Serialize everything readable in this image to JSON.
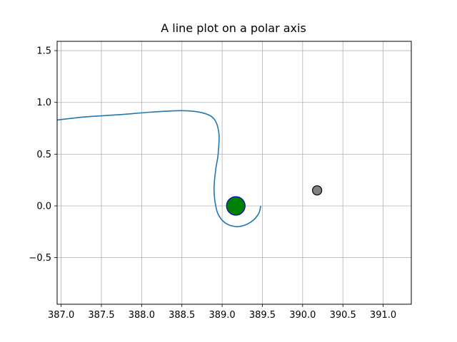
{
  "chart_data": {
    "type": "line",
    "title": "A line plot on a polar axis",
    "xlabel": "",
    "ylabel": "",
    "xlim": [
      386.95,
      391.35
    ],
    "ylim": [
      -0.95,
      1.59
    ],
    "grid": true,
    "x_ticks": [
      "387.0",
      "387.5",
      "388.0",
      "388.5",
      "389.0",
      "389.5",
      "390.0",
      "390.5",
      "391.0"
    ],
    "x_tick_values": [
      387.0,
      387.5,
      388.0,
      388.5,
      389.0,
      389.5,
      390.0,
      390.5,
      391.0
    ],
    "y_ticks": [
      "−0.5",
      "0.0",
      "0.5",
      "1.0",
      "1.5"
    ],
    "y_tick_values": [
      -0.5,
      0.0,
      0.5,
      1.0,
      1.5
    ],
    "series": [
      {
        "color": "#1f77b4",
        "x": [
          386.95,
          387.3,
          387.7,
          388.1,
          388.5,
          388.75,
          388.9,
          388.96,
          388.95,
          388.92,
          388.9,
          388.91,
          388.95,
          389.05,
          389.2,
          389.35,
          389.45,
          389.48
        ],
        "y": [
          0.83,
          0.86,
          0.88,
          0.905,
          0.92,
          0.9,
          0.84,
          0.7,
          0.5,
          0.35,
          0.18,
          0.05,
          -0.08,
          -0.17,
          -0.2,
          -0.16,
          -0.08,
          0.0
        ]
      }
    ],
    "markers": [
      {
        "x": 389.17,
        "y": 0.0,
        "fill": "#008000",
        "edge": "#0000cd",
        "size": "large"
      },
      {
        "x": 390.18,
        "y": 0.15,
        "fill": "#808080",
        "edge": "#000000",
        "size": "small"
      }
    ]
  }
}
